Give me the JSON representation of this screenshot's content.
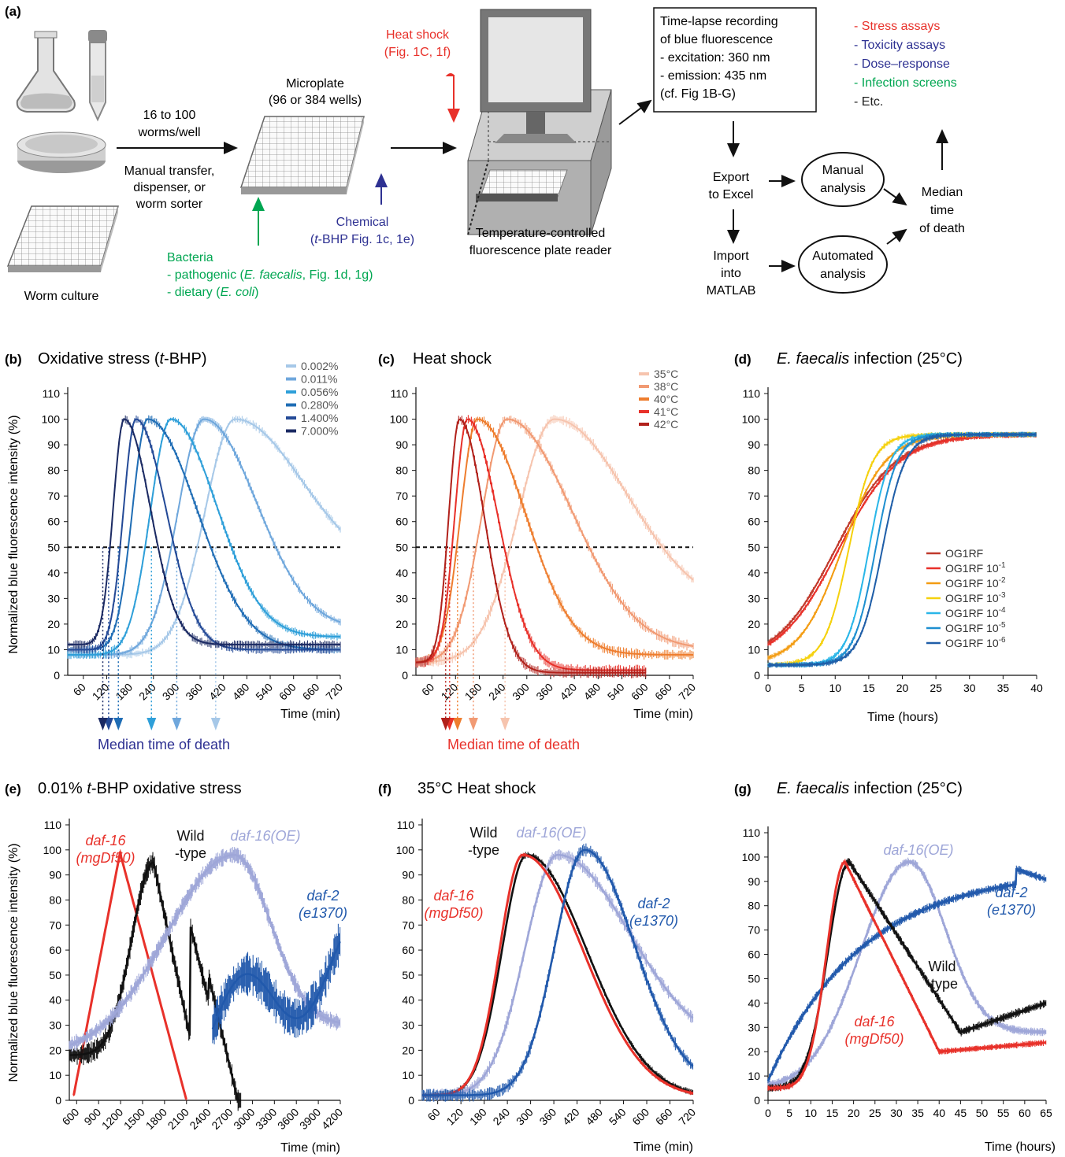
{
  "panel_a": {
    "label": "(a)",
    "worm_culture": "Worm culture",
    "transfer": {
      "count_line1": "16 to 100",
      "count_line2": "worms/well",
      "method_line1": "Manual transfer,",
      "method_line2": "dispenser, or",
      "method_line3": "worm sorter"
    },
    "microplate_line1": "Microplate",
    "microplate_line2": "(96 or 384 wells)",
    "heat_line1": "Heat shock",
    "heat_line2": "(Fig. 1C, 1f)",
    "chemical_line1": "Chemical",
    "chemical_line2_pre": "(",
    "chemical_line2_it": "t",
    "chemical_line2_post": "-BHP Fig. 1c, 1e)",
    "bacteria_title": "Bacteria",
    "bacteria_line1_pre": "- pathogenic (",
    "bacteria_line1_it": "E. faecalis",
    "bacteria_line1_post": ", Fig. 1d, 1g)",
    "bacteria_line2_pre": "- dietary (",
    "bacteria_line2_it": "E. coli",
    "bacteria_line2_post": ")",
    "reader_line1": "Temperature-controlled",
    "reader_line2": "fluorescence plate reader",
    "box_lines": [
      "Time-lapse recording",
      "of blue fluorescence",
      "- excitation: 360 nm",
      "- emission: 435 nm",
      "(cf. Fig 1B-G)"
    ],
    "assays": [
      {
        "text": "- Stress assays",
        "color": "#e8312a"
      },
      {
        "text": "- Toxicity assays",
        "color": "#2e3192"
      },
      {
        "text": "- Dose–response",
        "color": "#2e3192"
      },
      {
        "text": "- Infection screens",
        "color": "#00a651"
      },
      {
        "text": "- Etc.",
        "color": "#222222"
      }
    ],
    "export_line1": "Export",
    "export_line2": "to Excel",
    "import_line1": "Import",
    "import_line2": "into",
    "import_line3": "MATLAB",
    "manual_line1": "Manual",
    "manual_line2": "analysis",
    "auto_line1": "Automated",
    "auto_line2": "analysis",
    "median_line1": "Median",
    "median_line2": "time",
    "median_line3": "of death"
  },
  "colors": {
    "red": "#e8312a",
    "blue": "#2e3192",
    "green": "#00a651"
  },
  "chart_data": [
    {
      "panel": "(b)",
      "type": "line",
      "title_pre": "Oxidative stress (",
      "title_it": "t",
      "title_post": "-BHP)",
      "ylabel": "Normalized blue fluorescence intensity (%)",
      "xlabel": "Time (min)",
      "xlim": [
        20,
        720
      ],
      "ylim": [
        0,
        110
      ],
      "xticks": [
        60,
        120,
        180,
        240,
        300,
        360,
        420,
        480,
        540,
        600,
        660,
        720
      ],
      "yticks": [
        0,
        10,
        20,
        30,
        40,
        50,
        60,
        70,
        80,
        90,
        100,
        110
      ],
      "threshold": 50,
      "series": [
        {
          "name": "0.002%",
          "color": "#a6c8e8",
          "peak_x": 450,
          "peak_y": 100,
          "death_x": 400
        },
        {
          "name": "0.011%",
          "color": "#6fa7dc",
          "peak_x": 370,
          "peak_y": 100,
          "death_x": 300
        },
        {
          "name": "0.056%",
          "color": "#2e9fd9",
          "peak_x": 285,
          "peak_y": 100,
          "death_x": 235
        },
        {
          "name": "0.280%",
          "color": "#1f6db5",
          "peak_x": 225,
          "peak_y": 100,
          "death_x": 150
        },
        {
          "name": "1.400%",
          "color": "#244a97",
          "peak_x": 195,
          "peak_y": 100,
          "death_x": 125
        },
        {
          "name": "7.000%",
          "color": "#1b2a63",
          "peak_x": 165,
          "peak_y": 100,
          "death_x": 110
        }
      ],
      "annotation": "Median time of death"
    },
    {
      "panel": "(c)",
      "type": "line",
      "title": "Heat shock",
      "xlabel": "Time (min)",
      "xlim": [
        20,
        720
      ],
      "ylim": [
        0,
        110
      ],
      "xticks": [
        60,
        120,
        180,
        240,
        300,
        360,
        420,
        480,
        540,
        600,
        660,
        720
      ],
      "yticks": [
        0,
        10,
        20,
        30,
        40,
        50,
        60,
        70,
        80,
        90,
        100,
        110
      ],
      "threshold": 50,
      "series": [
        {
          "name": "35°C",
          "color": "#f6c4ae",
          "peak_x": 370,
          "peak_y": 100,
          "death_x": 245
        },
        {
          "name": "38°C",
          "color": "#f19a73",
          "peak_x": 250,
          "peak_y": 100,
          "death_x": 165
        },
        {
          "name": "40°C",
          "color": "#ee7d2e",
          "peak_x": 175,
          "peak_y": 100,
          "death_x": 125
        },
        {
          "name": "41°C",
          "color": "#e8312a",
          "peak_x": 150,
          "peak_y": 100,
          "death_x": 105
        },
        {
          "name": "42°C",
          "color": "#b1211b",
          "peak_x": 130,
          "peak_y": 100,
          "death_x": 95
        }
      ],
      "annotation": "Median time of death"
    },
    {
      "panel": "(d)",
      "type": "line",
      "title_it": "E. faecalis",
      "title_post": " infection (25°C)",
      "xlabel": "Time (hours)",
      "xlim": [
        0,
        40
      ],
      "ylim": [
        0,
        110
      ],
      "xticks": [
        0,
        5,
        10,
        15,
        20,
        25,
        30,
        35,
        40
      ],
      "yticks": [
        0,
        10,
        20,
        30,
        40,
        50,
        60,
        70,
        80,
        90,
        100,
        110
      ],
      "series": [
        {
          "name": "OG1RF",
          "sup": "",
          "color": "#c0392b",
          "mid_x": 10
        },
        {
          "name": "OG1RF 10",
          "sup": "-1",
          "color": "#e8312a",
          "mid_x": 10.5
        },
        {
          "name": "OG1RF 10",
          "sup": "-2",
          "color": "#f39c12",
          "mid_x": 11
        },
        {
          "name": "OG1RF 10",
          "sup": "-3",
          "color": "#f5d10d",
          "mid_x": 12
        },
        {
          "name": "OG1RF 10",
          "sup": "-4",
          "color": "#29b6e8",
          "mid_x": 15
        },
        {
          "name": "OG1RF 10",
          "sup": "-5",
          "color": "#1e8fd0",
          "mid_x": 16
        },
        {
          "name": "OG1RF 10",
          "sup": "-6",
          "color": "#1f5ea8",
          "mid_x": 17
        }
      ]
    },
    {
      "panel": "(e)",
      "type": "line",
      "title_pre": "0.01% ",
      "title_it": "t",
      "title_post": "-BHP oxidative stress",
      "ylabel": "Normalized blue fluorescence intensity (%)",
      "xlabel": "Time (min)",
      "xlim": [
        500,
        4200
      ],
      "ylim": [
        0,
        110
      ],
      "xticks": [
        600,
        900,
        1200,
        1500,
        1800,
        2100,
        2400,
        2700,
        3000,
        3300,
        3600,
        3900,
        4200
      ],
      "yticks": [
        0,
        10,
        20,
        30,
        40,
        50,
        60,
        70,
        80,
        90,
        100,
        110
      ],
      "series": [
        {
          "name_line1": "daf-16",
          "name_line2": "(mgDf50)",
          "color": "#e8312a",
          "peak_x": 1200
        },
        {
          "name_line1": "Wild",
          "name_line2": "-type",
          "color": "#111111",
          "peak_x": 1650
        },
        {
          "name_line1": "daf-16(OE)",
          "name_line2": "",
          "color": "#9ea6d8",
          "peak_x": 2750
        },
        {
          "name_line1": "daf-2",
          "name_line2": "(e1370)",
          "color": "#2159ac",
          "peak_x": 4200
        }
      ]
    },
    {
      "panel": "(f)",
      "type": "line",
      "title": "35°C Heat shock",
      "xlabel": "Time (min)",
      "xlim": [
        20,
        720
      ],
      "ylim": [
        0,
        110
      ],
      "xticks": [
        60,
        120,
        180,
        240,
        300,
        360,
        420,
        480,
        540,
        600,
        660,
        720
      ],
      "yticks": [
        0,
        10,
        20,
        30,
        40,
        50,
        60,
        70,
        80,
        90,
        100,
        110
      ],
      "series": [
        {
          "name_line1": "Wild",
          "name_line2": "-type",
          "color": "#111111",
          "peak_x": 290
        },
        {
          "name_line1": "daf-16(OE)",
          "name_line2": "",
          "color": "#9ea6d8",
          "peak_x": 370
        },
        {
          "name_line1": "daf-16",
          "name_line2": "(mgDf50)",
          "color": "#e8312a",
          "peak_x": 280
        },
        {
          "name_line1": "daf-2",
          "name_line2": "(e1370)",
          "color": "#2159ac",
          "peak_x": 440
        }
      ]
    },
    {
      "panel": "(g)",
      "type": "line",
      "title_it": "E. faecalis",
      "title_post": " infection (25°C)",
      "xlabel": "Time (hours)",
      "xlim": [
        0,
        65
      ],
      "ylim": [
        0,
        110
      ],
      "xticks": [
        0,
        5,
        10,
        15,
        20,
        25,
        30,
        35,
        40,
        45,
        50,
        55,
        60,
        65
      ],
      "yticks": [
        0,
        10,
        20,
        30,
        40,
        50,
        60,
        70,
        80,
        90,
        100,
        110
      ],
      "series": [
        {
          "name_line1": "daf-16(OE)",
          "name_line2": "",
          "color": "#9ea6d8",
          "peak_x": 33
        },
        {
          "name_line1": "daf-2",
          "name_line2": "(e1370)",
          "color": "#2159ac",
          "peak_x": 58
        },
        {
          "name_line1": "Wild",
          "name_line2": "-type",
          "color": "#111111",
          "peak_x": 19
        },
        {
          "name_line1": "daf-16",
          "name_line2": "(mgDf50)",
          "color": "#e8312a",
          "peak_x": 18
        }
      ]
    }
  ]
}
